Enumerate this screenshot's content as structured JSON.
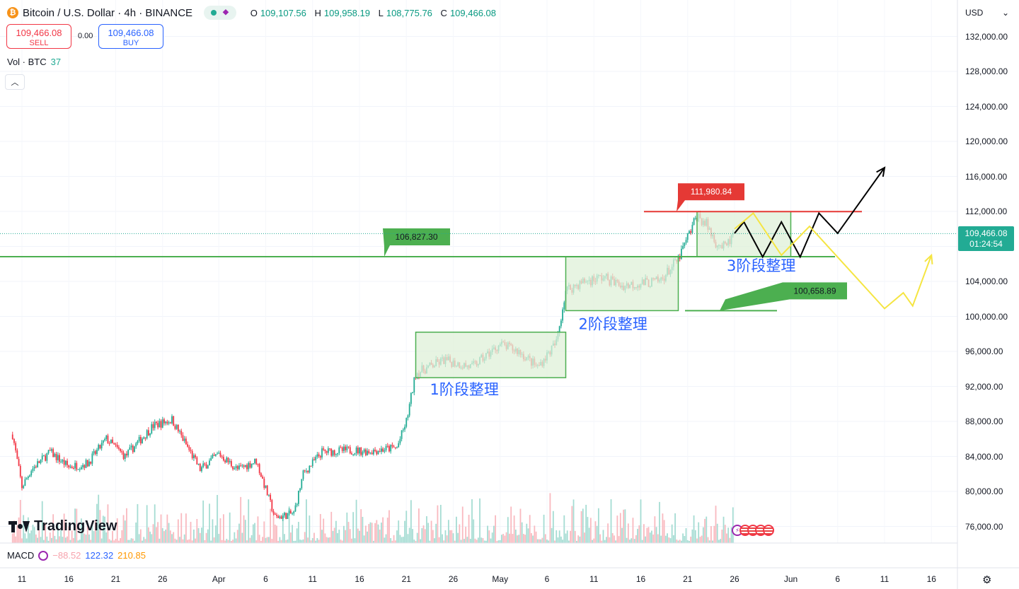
{
  "header": {
    "title": "Bitcoin / U.S. Dollar · 4h · BINANCE",
    "coin_symbol": "₿",
    "ohlc": [
      {
        "k": "O",
        "v": "109,107.56"
      },
      {
        "k": "H",
        "v": "109,958.19"
      },
      {
        "k": "L",
        "v": "108,775.76"
      },
      {
        "k": "C",
        "v": "109,466.08"
      }
    ],
    "sell_price": "109,466.08",
    "sell_label": "SELL",
    "spread": "0.00",
    "buy_price": "109,466.08",
    "buy_label": "BUY",
    "vol_label": "Vol · BTC",
    "vol_value": "37",
    "currency": "USD"
  },
  "price_tag": {
    "price": "109,466.08",
    "countdown": "01:24:54"
  },
  "macd": {
    "label": "MACD",
    "v1": "−88.52",
    "v2": "122.32",
    "v3": "210.85"
  },
  "watermark": "TradingView",
  "colors": {
    "up": "#22ab94",
    "down": "#f23645",
    "box": "#dff0d8",
    "box_border": "#4caf50",
    "label_green": "#4caf50",
    "label_red": "#e53935",
    "text_blue": "#2962ff"
  },
  "chart_data": {
    "type": "candlestick",
    "symbol": "BTCUSD",
    "interval": "4h",
    "ylim": [
      74000,
      135500
    ],
    "y_ticks": [
      "132,000.00",
      "128,000.00",
      "124,000.00",
      "120,000.00",
      "116,000.00",
      "112,000.00",
      "108,000.00",
      "104,000.00",
      "100,000.00",
      "96,000.00",
      "92,000.00",
      "88,000.00",
      "84,000.00",
      "80,000.00",
      "76,000.00"
    ],
    "y_tick_values": [
      132000,
      128000,
      124000,
      120000,
      116000,
      112000,
      108000,
      104000,
      100000,
      96000,
      92000,
      88000,
      84000,
      80000,
      76000
    ],
    "x_ticks": [
      "11",
      "16",
      "21",
      "26",
      "Apr",
      "6",
      "11",
      "16",
      "21",
      "26",
      "May",
      "6",
      "11",
      "16",
      "21",
      "26",
      "Jun",
      "6",
      "11",
      "16"
    ],
    "x_tick_dates": [
      "2025-03-11",
      "2025-03-16",
      "2025-03-21",
      "2025-03-26",
      "2025-04-01",
      "2025-04-06",
      "2025-04-11",
      "2025-04-16",
      "2025-04-21",
      "2025-04-26",
      "2025-05-01",
      "2025-05-06",
      "2025-05-11",
      "2025-05-16",
      "2025-05-21",
      "2025-05-26",
      "2025-06-01",
      "2025-06-06",
      "2025-06-11",
      "2025-06-16"
    ],
    "price_path": [
      [
        "2025-03-10",
        86500
      ],
      [
        "2025-03-11",
        80500
      ],
      [
        "2025-03-12",
        82500
      ],
      [
        "2025-03-14",
        84500
      ],
      [
        "2025-03-16",
        82800
      ],
      [
        "2025-03-18",
        83200
      ],
      [
        "2025-03-20",
        86000
      ],
      [
        "2025-03-22",
        84000
      ],
      [
        "2025-03-25",
        87500
      ],
      [
        "2025-03-27",
        88200
      ],
      [
        "2025-03-30",
        82500
      ],
      [
        "2025-04-01",
        84300
      ],
      [
        "2025-04-03",
        82500
      ],
      [
        "2025-04-05",
        83500
      ],
      [
        "2025-04-07",
        77000
      ],
      [
        "2025-04-09",
        77500
      ],
      [
        "2025-04-10",
        82000
      ],
      [
        "2025-04-12",
        84500
      ],
      [
        "2025-04-15",
        84700
      ],
      [
        "2025-04-17",
        84600
      ],
      [
        "2025-04-20",
        85000
      ],
      [
        "2025-04-21",
        88000
      ],
      [
        "2025-04-22",
        93500
      ],
      [
        "2025-04-23",
        94000
      ],
      [
        "2025-04-25",
        95000
      ],
      [
        "2025-04-28",
        94200
      ],
      [
        "2025-05-01",
        96800
      ],
      [
        "2025-05-03",
        96000
      ],
      [
        "2025-05-05",
        94200
      ],
      [
        "2025-05-07",
        97000
      ],
      [
        "2025-05-08",
        103000
      ],
      [
        "2025-05-10",
        104000
      ],
      [
        "2025-05-12",
        104500
      ],
      [
        "2025-05-14",
        103500
      ],
      [
        "2025-05-16",
        103800
      ],
      [
        "2025-05-18",
        104000
      ],
      [
        "2025-05-20",
        106500
      ],
      [
        "2025-05-21",
        109000
      ],
      [
        "2025-05-22",
        111500
      ],
      [
        "2025-05-23",
        110500
      ],
      [
        "2025-05-24",
        108500
      ],
      [
        "2025-05-25",
        107800
      ],
      [
        "2025-05-26",
        109466
      ]
    ],
    "last_price": 109466.08,
    "horizontal_levels": [
      {
        "price": 106827.3,
        "label": "106,827.30",
        "color": "green"
      },
      {
        "price": 111980.84,
        "label": "111,980.84",
        "color": "red"
      },
      {
        "price": 100658.89,
        "label": "100,658.89",
        "color": "green"
      }
    ],
    "consolidation_zones": [
      {
        "label": "1阶段整理",
        "from": "2025-04-22",
        "to": "2025-05-08",
        "low": 93000,
        "high": 98200
      },
      {
        "label": "2阶段整理",
        "from": "2025-05-08",
        "to": "2025-05-20",
        "low": 100658.89,
        "high": 106827.3
      },
      {
        "label": "3阶段整理",
        "from": "2025-05-22",
        "to": "2025-06-01",
        "low": 106827.3,
        "high": 111980.84
      }
    ],
    "projections": [
      {
        "color": "black",
        "points": [
          [
            "2025-05-26",
            109500
          ],
          [
            "2025-05-27",
            110800
          ],
          [
            "2025-05-29",
            106800
          ],
          [
            "2025-05-31",
            110800
          ],
          [
            "2025-06-02",
            106800
          ],
          [
            "2025-06-04",
            111800
          ],
          [
            "2025-06-06",
            109500
          ],
          [
            "2025-06-11",
            117000
          ]
        ]
      },
      {
        "color": "yellow",
        "points": [
          [
            "2025-05-26",
            110000
          ],
          [
            "2025-05-28",
            111800
          ],
          [
            "2025-05-31",
            107000
          ],
          [
            "2025-06-03",
            110300
          ],
          [
            "2025-06-11",
            100900
          ],
          [
            "2025-06-13",
            102700
          ],
          [
            "2025-06-14",
            101200
          ],
          [
            "2025-06-16",
            107000
          ]
        ]
      }
    ]
  }
}
